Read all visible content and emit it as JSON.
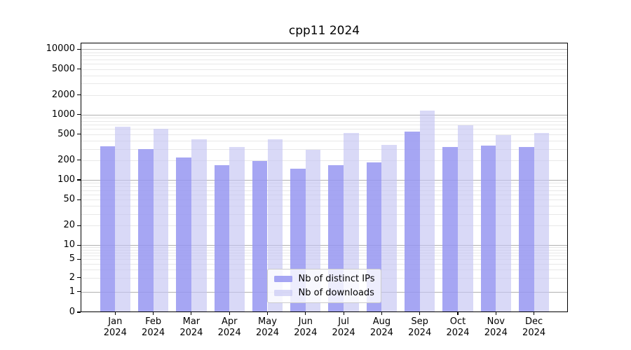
{
  "chart_data": {
    "type": "bar",
    "title": "cpp11 2024",
    "categories": [
      "Jan 2024",
      "Feb 2024",
      "Mar 2024",
      "Apr 2024",
      "May 2024",
      "Jun 2024",
      "Jul 2024",
      "Aug 2024",
      "Sep 2024",
      "Oct 2024",
      "Nov 2024",
      "Dec 2024"
    ],
    "series": [
      {
        "key": "distinct-ips",
        "name": "Nb of distinct IPs",
        "color": "#a5a5f2",
        "fill_rgba": "rgba(150,150,241,0.85)",
        "values": [
          330,
          295,
          218,
          170,
          197,
          148,
          170,
          184,
          545,
          318,
          334,
          316
        ]
      },
      {
        "key": "downloads",
        "name": "Nb of downloads",
        "color": "#d8d8f7",
        "fill_rgba": "rgba(196,196,243,0.65)",
        "values": [
          650,
          610,
          415,
          318,
          422,
          288,
          522,
          341,
          1155,
          685,
          487,
          527
        ]
      }
    ],
    "yscale": "symlog",
    "yticks": [
      0,
      1,
      2,
      5,
      10,
      20,
      50,
      100,
      200,
      500,
      1000,
      2000,
      5000,
      10000
    ],
    "ylim": [
      0,
      12700
    ],
    "grid": "both",
    "grid_major_color": "#b0b0b0",
    "grid_minor_color": "#e8e8e8",
    "spine_color": "#000000",
    "text_color": "#000000",
    "legend_position": "lower center"
  }
}
